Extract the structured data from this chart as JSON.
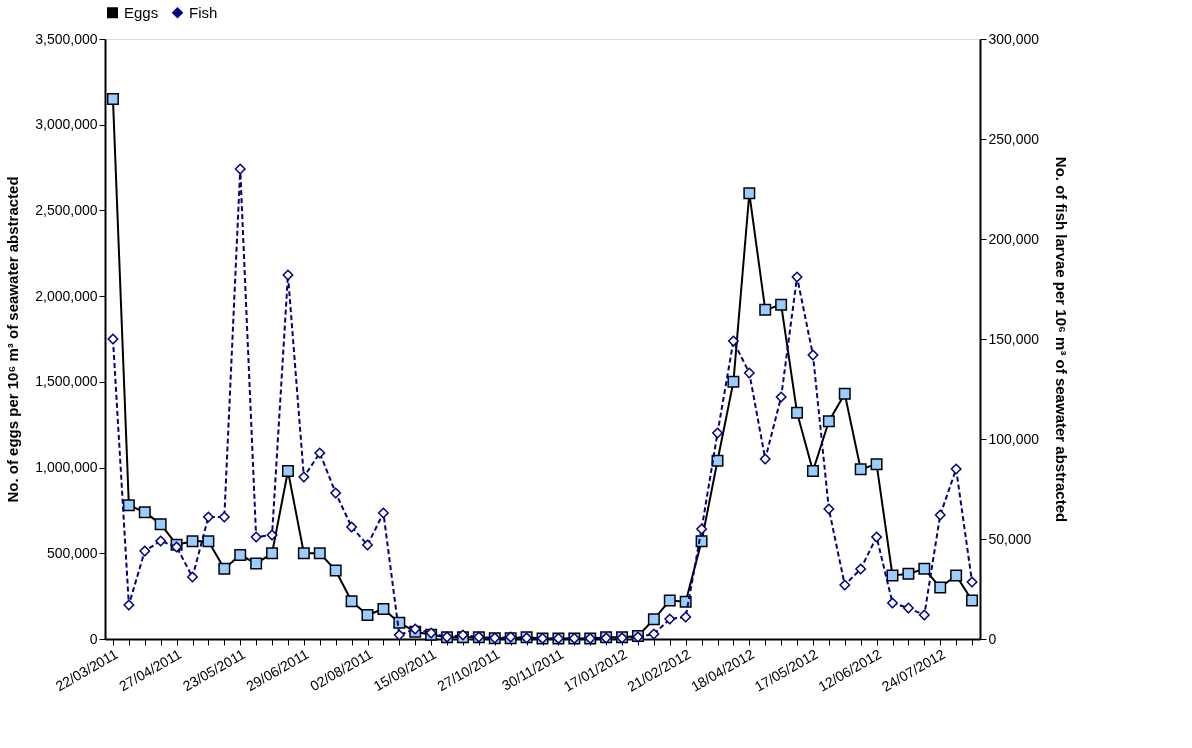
{
  "chart_data": {
    "type": "line",
    "categories": [
      "22/03/2011",
      null,
      null,
      null,
      "27/04/2011",
      null,
      null,
      null,
      "23/05/2011",
      null,
      null,
      null,
      "29/06/2011",
      null,
      null,
      null,
      "02/08/2011",
      null,
      null,
      null,
      "15/09/2011",
      null,
      null,
      null,
      "27/10/2011",
      null,
      null,
      null,
      "30/11/2011",
      null,
      null,
      null,
      "17/01/2012",
      null,
      null,
      null,
      "21/02/2012",
      null,
      null,
      null,
      "18/04/2012",
      null,
      null,
      null,
      "17/05/2012",
      null,
      null,
      null,
      "12/06/2012",
      null,
      null,
      null,
      "24/07/2012",
      null,
      null
    ],
    "ylabel": "No. of eggs per 10⁶ m³ of seawater abstracted",
    "y2label": "No. of fish  larvae per 10⁶ m³ of seawater abstracted",
    "ylim": [
      0,
      3500000
    ],
    "yticks": [
      0,
      {
        "value": 500000,
        "label": "500,000"
      },
      {
        "value": 1000000,
        "label": "1,000,000"
      },
      {
        "value": 1500000,
        "label": "1,500,000"
      },
      {
        "value": 2000000,
        "label": "2,000,000"
      },
      {
        "value": 2500000,
        "label": "2,500,000"
      },
      {
        "value": 3000000,
        "label": "3,000,000"
      },
      {
        "value": 3500000,
        "label": "3,500,000"
      }
    ],
    "y2lim": [
      0,
      300000
    ],
    "y2ticks": [
      0,
      {
        "value": 50000,
        "label": "50,000"
      },
      {
        "value": 100000,
        "label": "100,000"
      },
      {
        "value": 150000,
        "label": "150,000"
      },
      {
        "value": 200000,
        "label": "200,000"
      },
      {
        "value": 250000,
        "label": "250,000"
      },
      {
        "value": 300000,
        "label": "300,000"
      }
    ],
    "grid": false,
    "legend": "top",
    "series": [
      {
        "name": "Eggs",
        "color": "#000000",
        "marker": "square",
        "line_style": "solid",
        "values": [
          3150000,
          780000,
          740000,
          670000,
          550000,
          570000,
          570000,
          410000,
          490000,
          440000,
          500000,
          980000,
          500000,
          500000,
          400000,
          220000,
          140000,
          175000,
          95000,
          42000,
          25000,
          10000,
          10000,
          10000,
          5000,
          5000,
          10000,
          3000,
          3000,
          3000,
          3000,
          10000,
          10000,
          17000,
          115000,
          225000,
          217000,
          570000,
          1040000,
          1500000,
          2600000,
          1920000,
          1950000,
          1320000,
          980000,
          1270000,
          1430000,
          990000,
          1020000,
          370000,
          380000,
          410000,
          300000,
          370000,
          225000
        ]
      },
      {
        "name": "Fish",
        "color": "#000080",
        "marker": "diamond",
        "line_style": "dashed",
        "axis": "y2",
        "values": [
          150000,
          17000,
          44000,
          49000,
          46000,
          31000,
          61000,
          61000,
          235000,
          51000,
          52000,
          182000,
          81000,
          93000,
          73000,
          56000,
          47000,
          63000,
          2000,
          5000,
          3000,
          1000,
          2000,
          1000,
          500,
          1000,
          500,
          300,
          300,
          300,
          300,
          500,
          500,
          1000,
          2500,
          10000,
          11000,
          55000,
          103000,
          149000,
          133000,
          90000,
          121000,
          181000,
          142000,
          65000,
          27000,
          35000,
          51000,
          18000,
          15500,
          12000,
          62000,
          85000,
          28500
        ]
      }
    ]
  }
}
